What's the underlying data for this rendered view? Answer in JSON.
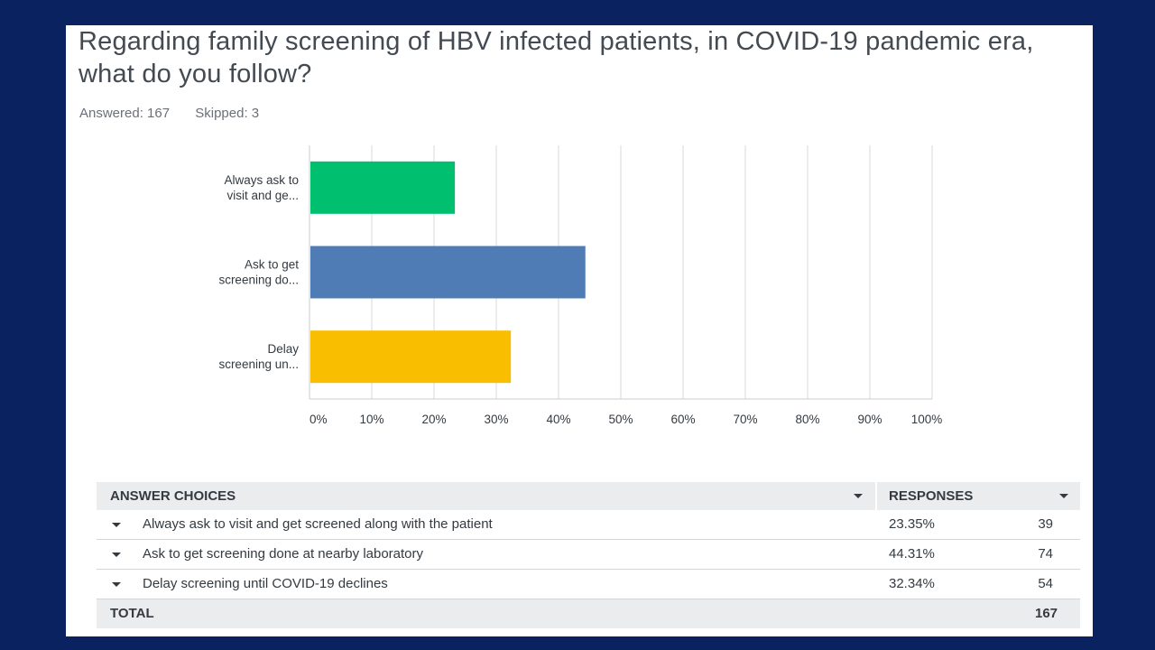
{
  "question": {
    "title": "Regarding family screening of HBV infected patients, in COVID-19 pandemic era, what do you follow?",
    "answered": "Answered: 167",
    "skipped": "Skipped: 3"
  },
  "colors": {
    "background": "#0b2260",
    "green": "#00bf6f",
    "blue": "#507cb6",
    "yellow": "#f9be00",
    "grid": "#d7d9db",
    "axis": "#c9ccd0"
  },
  "chart_data": {
    "type": "bar",
    "orientation": "horizontal",
    "categories": [
      "Always ask to visit and ge...",
      "Ask to get screening do...",
      "Delay screening un..."
    ],
    "category_lines": [
      [
        "Always ask to",
        "visit and ge..."
      ],
      [
        "Ask to get",
        "screening do..."
      ],
      [
        "Delay",
        "screening un..."
      ]
    ],
    "values": [
      23.35,
      44.31,
      32.34
    ],
    "xlim": [
      0,
      100
    ],
    "xticks": [
      0,
      10,
      20,
      30,
      40,
      50,
      60,
      70,
      80,
      90,
      100
    ],
    "xtick_labels": [
      "0%",
      "10%",
      "20%",
      "30%",
      "40%",
      "50%",
      "60%",
      "70%",
      "80%",
      "90%",
      "100%"
    ],
    "bar_colors": [
      "#00bf6f",
      "#507cb6",
      "#f9be00"
    ],
    "grid": true
  },
  "table": {
    "header": {
      "choices": "ANSWER CHOICES",
      "responses": "RESPONSES"
    },
    "rows": [
      {
        "choice": "Always ask to visit and get screened along with the patient",
        "percent": "23.35%",
        "count": "39"
      },
      {
        "choice": "Ask to get screening done at nearby laboratory",
        "percent": "44.31%",
        "count": "74"
      },
      {
        "choice": "Delay screening until COVID-19 declines",
        "percent": "32.34%",
        "count": "54"
      }
    ],
    "total": {
      "label": "TOTAL",
      "count": "167"
    }
  }
}
